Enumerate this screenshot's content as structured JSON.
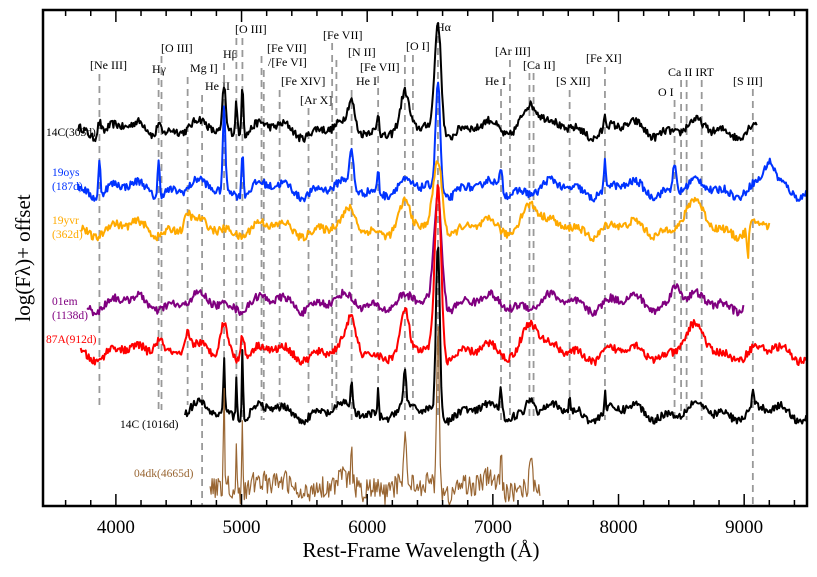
{
  "chart_data": {
    "type": "line",
    "title": "",
    "xlabel": "Rest-Frame Wavelength (Å)",
    "ylabel": "log(Fλ)+ offset",
    "xlim": [
      3420,
      9500
    ],
    "ylim": [
      0,
      100
    ],
    "grid": false,
    "legend": "none (series labelled inline at left)",
    "xticks": [
      4000,
      5000,
      6000,
      7000,
      8000,
      9000
    ],
    "xtick_labels": [
      "4000",
      "5000",
      "6000",
      "7000",
      "8000",
      "9000"
    ],
    "minor_xtick_step": 200,
    "line_ids": [
      {
        "name": "[Ne III]",
        "wl": 3869
      },
      {
        "name": "Hγ",
        "wl": 4340
      },
      {
        "name": "[O III]",
        "wl": 4363
      },
      {
        "name": "Mg I]",
        "wl": 4571
      },
      {
        "name": "He II",
        "wl": 4686
      },
      {
        "name": "Hβ",
        "wl": 4861
      },
      {
        "name": "[O III]",
        "wl": 4959
      },
      {
        "name": "[O III]",
        "wl": 5007
      },
      {
        "name": "[Fe VII]",
        "wl": 5159
      },
      {
        "name": "/[Fe VI]",
        "wl": 5177
      },
      {
        "name": "[Fe XIV]",
        "wl": 5303
      },
      {
        "name": "[Ar X]",
        "wl": 5533
      },
      {
        "name": "[Fe VII]",
        "wl": 5721
      },
      {
        "name": "[N II]",
        "wl": 5755
      },
      {
        "name": "He I",
        "wl": 5876
      },
      {
        "name": "[Fe VII]",
        "wl": 6087
      },
      {
        "name": "[O I]",
        "wl": 6300
      },
      {
        "name": "[O I]",
        "wl": 6364
      },
      {
        "name": "Hα",
        "wl": 6563
      },
      {
        "name": "He I",
        "wl": 7065
      },
      {
        "name": "[Ar III]",
        "wl": 7136
      },
      {
        "name": "[Ca II]",
        "wl": 7291
      },
      {
        "name": "[Ca II]",
        "wl": 7324
      },
      {
        "name": "[S XII]",
        "wl": 7611
      },
      {
        "name": "[Fe XI]",
        "wl": 7892
      },
      {
        "name": "O I",
        "wl": 8446
      },
      {
        "name": "Ca II IRT",
        "wl": 8498
      },
      {
        "name": "Ca II IRT",
        "wl": 8542
      },
      {
        "name": "Ca II IRT",
        "wl": 8662
      },
      {
        "name": "[S III]",
        "wl": 9069
      }
    ],
    "series": [
      {
        "name": "14C(303d)",
        "label_lines": [
          "14C(303d)"
        ],
        "color": "#000000",
        "x_range": [
          3700,
          9100
        ],
        "baseline": 76,
        "features": [
          {
            "wl": 3869,
            "amp": 3,
            "w": 15
          },
          {
            "wl": 4340,
            "amp": 3,
            "w": 15
          },
          {
            "wl": 4861,
            "amp": 9,
            "w": 12
          },
          {
            "wl": 4959,
            "amp": 7,
            "w": 8
          },
          {
            "wl": 5007,
            "amp": 11,
            "w": 8
          },
          {
            "wl": 5876,
            "amp": 5,
            "w": 25
          },
          {
            "wl": 6087,
            "amp": 4,
            "w": 8
          },
          {
            "wl": 6300,
            "amp": 6,
            "w": 30
          },
          {
            "wl": 6563,
            "amp": 22,
            "w": 25
          },
          {
            "wl": 7300,
            "amp": 6,
            "w": 60
          },
          {
            "wl": 7892,
            "amp": 3,
            "w": 6
          }
        ]
      },
      {
        "name": "19oys(187d)",
        "label_lines": [
          "19oys",
          "(187d)"
        ],
        "color": "#0033ff",
        "x_range": [
          3700,
          9500
        ],
        "baseline": 64,
        "features": [
          {
            "wl": 3869,
            "amp": 7,
            "w": 8
          },
          {
            "wl": 4340,
            "amp": 7,
            "w": 8
          },
          {
            "wl": 4861,
            "amp": 16,
            "w": 10
          },
          {
            "wl": 5007,
            "amp": 9,
            "w": 8
          },
          {
            "wl": 5876,
            "amp": 7,
            "w": 15
          },
          {
            "wl": 6087,
            "amp": 5,
            "w": 6
          },
          {
            "wl": 6563,
            "amp": 22,
            "w": 18
          },
          {
            "wl": 7065,
            "amp": 5,
            "w": 10
          },
          {
            "wl": 7892,
            "amp": 5,
            "w": 6
          },
          {
            "wl": 8446,
            "amp": 5,
            "w": 15
          },
          {
            "wl": 9200,
            "amp": 5,
            "w": 40
          }
        ]
      },
      {
        "name": "19yvr(362d)",
        "label_lines": [
          "19yvr",
          "(362d)"
        ],
        "color": "#ffaa00",
        "x_range": [
          3720,
          9200
        ],
        "baseline": 56,
        "features": [
          {
            "wl": 4571,
            "amp": 3,
            "w": 25
          },
          {
            "wl": 5876,
            "amp": 3,
            "w": 40
          },
          {
            "wl": 6300,
            "amp": 4,
            "w": 40
          },
          {
            "wl": 6563,
            "amp": 14,
            "w": 35
          },
          {
            "wl": 7300,
            "amp": 6,
            "w": 60
          },
          {
            "wl": 8600,
            "amp": 4,
            "w": 80
          },
          {
            "wl": 9030,
            "amp": -7,
            "w": 6
          }
        ]
      },
      {
        "name": "01em(1138d)",
        "label_lines": [
          "01em",
          "(1138d)"
        ],
        "color": "#800080",
        "x_range": [
          3770,
          9000
        ],
        "baseline": 41,
        "features": [
          {
            "wl": 6563,
            "amp": 22,
            "w": 30
          },
          {
            "wl": 8460,
            "amp": 4,
            "w": 40
          }
        ]
      },
      {
        "name": "87A(912d)",
        "label_lines": [
          "87A(912d)"
        ],
        "color": "#ff0000",
        "x_range": [
          3720,
          9500
        ],
        "baseline": 31,
        "features": [
          {
            "wl": 4340,
            "amp": 4,
            "w": 40
          },
          {
            "wl": 4571,
            "amp": 4,
            "w": 20
          },
          {
            "wl": 4861,
            "amp": 6,
            "w": 30
          },
          {
            "wl": 5007,
            "amp": 5,
            "w": 15
          },
          {
            "wl": 5876,
            "amp": 6,
            "w": 40
          },
          {
            "wl": 6300,
            "amp": 7,
            "w": 30
          },
          {
            "wl": 6563,
            "amp": 34,
            "w": 25
          },
          {
            "wl": 7300,
            "amp": 7,
            "w": 60
          },
          {
            "wl": 8600,
            "amp": 4,
            "w": 80
          }
        ]
      },
      {
        "name": "14C (1016d)",
        "label_lines": [
          "14C (1016d)"
        ],
        "color": "#000000",
        "x_range": [
          4550,
          9500
        ],
        "baseline": 19,
        "features": [
          {
            "wl": 4861,
            "amp": 11,
            "w": 6
          },
          {
            "wl": 4959,
            "amp": 9,
            "w": 5
          },
          {
            "wl": 5007,
            "amp": 14,
            "w": 5
          },
          {
            "wl": 5876,
            "amp": 5,
            "w": 8
          },
          {
            "wl": 6087,
            "amp": 5,
            "w": 5
          },
          {
            "wl": 6300,
            "amp": 7,
            "w": 10
          },
          {
            "wl": 6563,
            "amp": 35,
            "w": 15
          },
          {
            "wl": 7065,
            "amp": 5,
            "w": 8
          },
          {
            "wl": 7300,
            "amp": 4,
            "w": 30
          },
          {
            "wl": 7611,
            "amp": 4,
            "w": 5
          },
          {
            "wl": 7892,
            "amp": 4,
            "w": 5
          },
          {
            "wl": 9069,
            "amp": 4,
            "w": 6
          }
        ]
      },
      {
        "name": "04dk(4665d)",
        "label_lines": [
          "04dk(4665d)"
        ],
        "color": "#996633",
        "x_range": [
          4750,
          7380
        ],
        "baseline": 4,
        "features": [
          {
            "wl": 4861,
            "amp": 22,
            "w": 5
          },
          {
            "wl": 4959,
            "amp": 11,
            "w": 5
          },
          {
            "wl": 5007,
            "amp": 15,
            "w": 5
          },
          {
            "wl": 5876,
            "amp": 6,
            "w": 6
          },
          {
            "wl": 6300,
            "amp": 10,
            "w": 8
          },
          {
            "wl": 6563,
            "amp": 34,
            "w": 10
          },
          {
            "wl": 7065,
            "amp": 7,
            "w": 6
          },
          {
            "wl": 7300,
            "amp": 8,
            "w": 12
          }
        ]
      }
    ]
  }
}
